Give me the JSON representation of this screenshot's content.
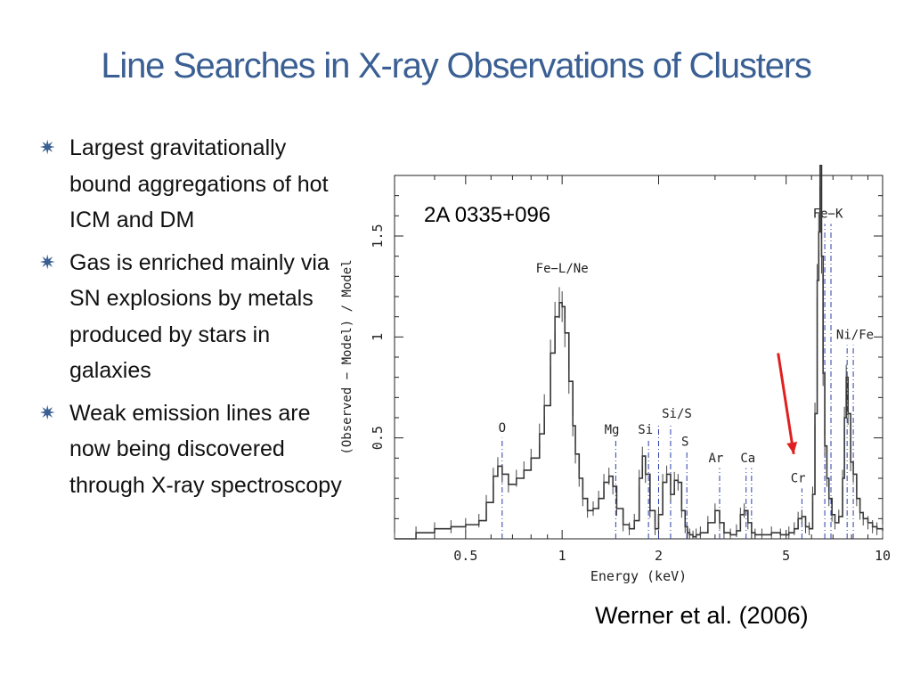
{
  "slide": {
    "title": "Line Searches in X-ray Observations of Clusters",
    "bullets": [
      {
        "icon": "star-bullet-icon",
        "text": "Largest gravitationally bound aggregations of hot ICM and DM"
      },
      {
        "icon": "star-bullet-icon",
        "text": "Gas is enriched mainly via SN explosions by metals produced by stars in galaxies"
      },
      {
        "icon": "star-bullet-icon",
        "text": "Weak emission lines are now  being discovered through X-ray spectroscopy"
      }
    ],
    "citation": "Werner et al. (2006)",
    "colors": {
      "title": "#3a5f93",
      "bullet": "#3a5f93",
      "line_marker": "#2a3ea8",
      "arrow": "#e02020"
    }
  },
  "chart_data": {
    "type": "line",
    "panel_label": "2A 0335+096",
    "xlabel": "Energy (keV)",
    "ylabel": "(Observed − Model) / Model",
    "xscale": "log",
    "xlim": [
      0.3,
      10
    ],
    "ylim": [
      0,
      1.8
    ],
    "xticks": [
      0.5,
      1,
      2,
      5,
      10
    ],
    "xtick_labels": [
      "0.5",
      "1",
      "2",
      "5",
      "10"
    ],
    "yticks": [
      0.5,
      1,
      1.5
    ],
    "ytick_labels": [
      "0.5",
      "1",
      "1.5"
    ],
    "grid": false,
    "series": [
      {
        "x": [
          0.3,
          0.35,
          0.4,
          0.45,
          0.5,
          0.55,
          0.58,
          0.61,
          0.63,
          0.65,
          0.68,
          0.72,
          0.76,
          0.8,
          0.85,
          0.88,
          0.92,
          0.95,
          0.98,
          1.0,
          1.02,
          1.05,
          1.08,
          1.1,
          1.13,
          1.16,
          1.2,
          1.25,
          1.3,
          1.35,
          1.4,
          1.44,
          1.48,
          1.55,
          1.62,
          1.68,
          1.74,
          1.78,
          1.82,
          1.88,
          1.95,
          2.0,
          2.06,
          2.12,
          2.18,
          2.24,
          2.3,
          2.36,
          2.42,
          2.46,
          2.5,
          2.56,
          2.62,
          2.7,
          2.85,
          3.0,
          3.1,
          3.2,
          3.35,
          3.5,
          3.6,
          3.7,
          3.8,
          3.9,
          4.0,
          4.2,
          4.5,
          4.8,
          5.1,
          5.3,
          5.45,
          5.6,
          5.75,
          5.9,
          6.05,
          6.15,
          6.25,
          6.32,
          6.38,
          6.45,
          6.52,
          6.6,
          6.7,
          6.8,
          6.95,
          7.1,
          7.3,
          7.5,
          7.6,
          7.7,
          7.8,
          7.95,
          8.1,
          8.3,
          8.5,
          8.7,
          9.0,
          9.3,
          9.6,
          10.0
        ],
        "y": [
          0.0,
          0.03,
          0.05,
          0.06,
          0.07,
          0.09,
          0.18,
          0.31,
          0.36,
          0.32,
          0.27,
          0.3,
          0.34,
          0.4,
          0.52,
          0.66,
          0.92,
          1.1,
          1.17,
          1.15,
          1.02,
          0.78,
          0.56,
          0.42,
          0.3,
          0.2,
          0.14,
          0.15,
          0.2,
          0.28,
          0.31,
          0.26,
          0.15,
          0.07,
          0.05,
          0.09,
          0.3,
          0.41,
          0.32,
          0.14,
          0.05,
          0.12,
          0.28,
          0.32,
          0.22,
          0.29,
          0.28,
          0.14,
          0.06,
          0.03,
          0.02,
          0.01,
          0.02,
          0.03,
          0.08,
          0.14,
          0.08,
          0.03,
          0.02,
          0.04,
          0.12,
          0.14,
          0.08,
          0.03,
          0.02,
          0.02,
          0.03,
          0.02,
          0.03,
          0.05,
          0.1,
          0.11,
          0.06,
          0.05,
          0.22,
          0.62,
          1.28,
          1.52,
          1.85,
          1.4,
          0.82,
          0.46,
          0.3,
          0.2,
          0.12,
          0.08,
          0.11,
          0.3,
          0.6,
          0.8,
          0.62,
          0.38,
          0.32,
          0.2,
          0.13,
          0.1,
          0.08,
          0.06,
          0.05,
          0.04
        ]
      }
    ],
    "line_markers": [
      {
        "label": "O",
        "x": [
          0.65
        ]
      },
      {
        "label": "Fe−L/Ne",
        "x": []
      },
      {
        "label": "Mg",
        "x": [
          1.47
        ]
      },
      {
        "label": "Si",
        "x": [
          1.86
        ]
      },
      {
        "label": "Si/S",
        "x": [
          2.0,
          2.18
        ]
      },
      {
        "label": "S",
        "x": [
          2.45
        ]
      },
      {
        "label": "Ar",
        "x": [
          3.1
        ]
      },
      {
        "label": "Ca",
        "x": [
          3.75,
          3.9
        ]
      },
      {
        "label": "Cr",
        "x": [
          5.6
        ]
      },
      {
        "label": "Fe−K",
        "x": [
          6.6,
          6.9
        ]
      },
      {
        "label": "Ni/Fe",
        "x": [
          7.75,
          8.1
        ]
      }
    ],
    "annotations": [
      {
        "type": "arrow",
        "from": {
          "x": 4.72,
          "y": 0.92
        },
        "to": {
          "x": 5.28,
          "y": 0.42
        }
      }
    ]
  }
}
